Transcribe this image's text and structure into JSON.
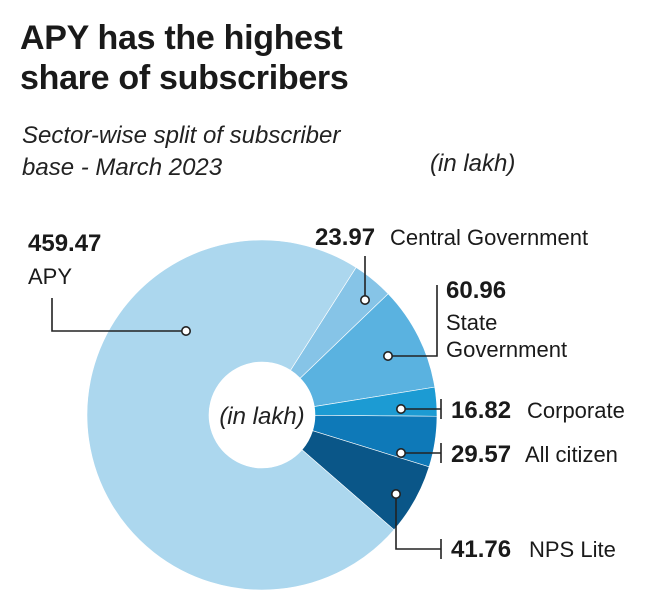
{
  "title_line1": "APY has the highest",
  "title_line2": "share of subscribers",
  "subtitle_line1": "Sector-wise split of subscriber",
  "subtitle_line2": "base - March 2023",
  "unit_top": "(in lakh)",
  "center_label": "(in lakh)",
  "colors": {
    "apy": "#acd7ee",
    "central": "#86c4e7",
    "state": "#5ab2e0",
    "corporate": "#1c9bd3",
    "citizen": "#0e79b8",
    "nps": "#0a5688",
    "leader": "#222222"
  },
  "chart_data": {
    "type": "pie",
    "donut": true,
    "title": "APY has the highest share of subscribers",
    "subtitle": "Sector-wise split of subscriber base - March 2023",
    "unit": "(in lakh)",
    "slices": [
      {
        "key": "apy",
        "label": "APY",
        "value": 459.47,
        "value_text": "459.47",
        "color": "#acd7ee"
      },
      {
        "key": "central",
        "label": "Central Government",
        "value": 23.97,
        "value_text": "23.97",
        "color": "#86c4e7"
      },
      {
        "key": "state",
        "label": "State Government",
        "label_line1": "State",
        "label_line2": "Government",
        "value": 60.96,
        "value_text": "60.96",
        "color": "#5ab2e0"
      },
      {
        "key": "corporate",
        "label": "Corporate",
        "value": 16.82,
        "value_text": "16.82",
        "color": "#1c9bd3"
      },
      {
        "key": "citizen",
        "label": "All citizen",
        "value": 29.57,
        "value_text": "29.57",
        "color": "#0e79b8"
      },
      {
        "key": "nps",
        "label": "NPS Lite",
        "value": 41.76,
        "value_text": "41.76",
        "color": "#0a5688"
      }
    ]
  }
}
